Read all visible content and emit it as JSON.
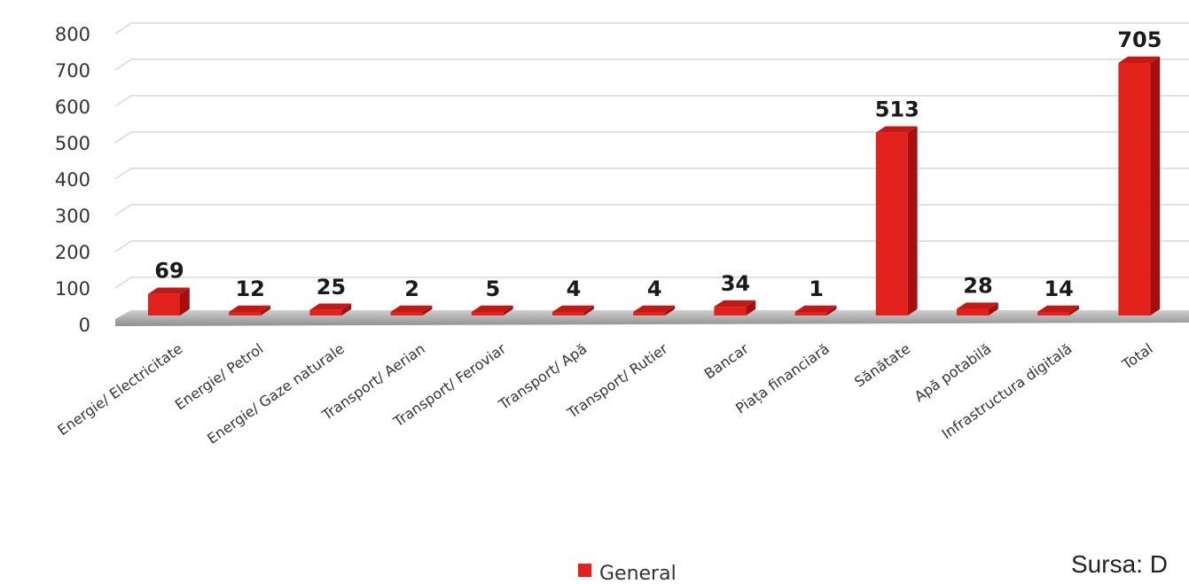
{
  "chart_data": {
    "type": "bar",
    "categories": [
      "Energie/ Electricitate",
      "Energie/ Petrol",
      "Energie/ Gaze naturale",
      "Transport/ Aerian",
      "Transport/ Feroviar",
      "Transport/ Apă",
      "Transport/ Rutier",
      "Bancar",
      "Piața financiară",
      "Sănătate",
      "Apă potabilă",
      "Infrastructura digitală",
      "Total"
    ],
    "series": [
      {
        "name": "General",
        "values": [
          69,
          12,
          25,
          2,
          5,
          4,
          4,
          34,
          1,
          513,
          28,
          14,
          705
        ],
        "color": "#e2211c"
      }
    ],
    "data_labels": [
      "69",
      "12",
      "25",
      "2",
      "5",
      "4",
      "4",
      "34",
      "1",
      "513",
      "28",
      "14",
      "705"
    ],
    "yticks": [
      "0",
      "100",
      "200",
      "300",
      "400",
      "500",
      "600",
      "700",
      "800"
    ],
    "ylim": [
      0,
      800
    ],
    "grid": true,
    "legend_position": "bottom-center"
  },
  "source_note": "Sursa: D",
  "colors": {
    "bar_front": "#e2211c",
    "bar_side": "#a50f0f",
    "bar_top": "#c41815",
    "floor": "#b3b3b3",
    "grid": "#d9d9d9"
  }
}
